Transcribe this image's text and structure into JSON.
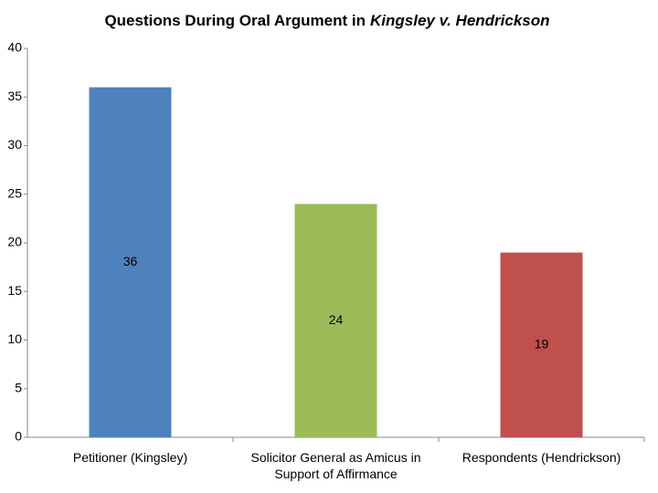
{
  "chart_data": {
    "type": "bar",
    "title": [
      "Questions During Oral Argument in",
      "Kingsley v. Hendrickson"
    ],
    "categories": [
      "Petitioner (Kingsley)",
      "Solicitor General as Amicus in Support of Affirmance",
      "Respondents (Hendrickson)"
    ],
    "values": [
      36,
      24,
      19
    ],
    "colors": [
      "#4f81bd",
      "#9bbb59",
      "#c0504d"
    ],
    "ylim": [
      0,
      40
    ],
    "yticks": [
      0,
      5,
      10,
      15,
      20,
      25,
      30,
      35,
      40
    ],
    "grid": false
  }
}
